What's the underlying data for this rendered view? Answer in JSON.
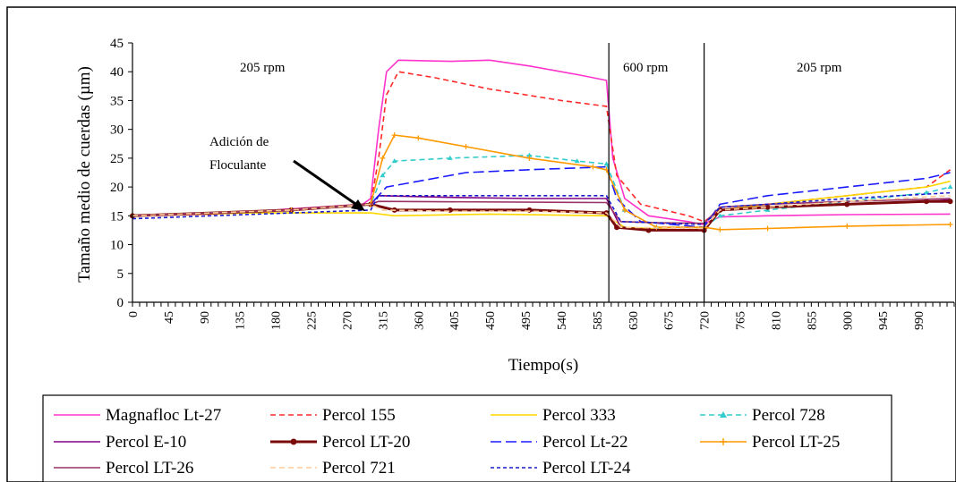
{
  "chart_data": {
    "type": "line",
    "xlabel": "Tiempo(s)",
    "ylabel": "Tamaño medio de cuerdas (µm)",
    "ylim": [
      0,
      45
    ],
    "xlim": [
      0,
      1035
    ],
    "yticks": [
      "0",
      "5",
      "10",
      "15",
      "20",
      "25",
      "30",
      "35",
      "40",
      "45"
    ],
    "xticks": [
      "0",
      "45",
      "90",
      "135",
      "180",
      "225",
      "270",
      "315",
      "360",
      "405",
      "450",
      "495",
      "540",
      "585",
      "630",
      "675",
      "720",
      "765",
      "810",
      "855",
      "900",
      "945",
      "990"
    ],
    "grid": false,
    "legend_position": "bottom",
    "annotations": {
      "zone1": "205 rpm",
      "zone2": "600 rpm",
      "zone3": "205 rpm",
      "arrow_line1": "Adición de",
      "arrow_line2": "Floculante"
    },
    "vlines": [
      600,
      720
    ],
    "series": [
      {
        "name": "Magnafloc Lt-27",
        "color": "#ff33cc",
        "dash": "solid",
        "marker": "none",
        "points": [
          [
            0,
            15
          ],
          [
            100,
            15.3
          ],
          [
            200,
            16.2
          ],
          [
            290,
            17
          ],
          [
            300,
            18
          ],
          [
            310,
            30
          ],
          [
            320,
            40
          ],
          [
            335,
            42
          ],
          [
            400,
            41.8
          ],
          [
            450,
            42
          ],
          [
            500,
            41
          ],
          [
            560,
            39.5
          ],
          [
            597,
            38.5
          ],
          [
            605,
            25
          ],
          [
            620,
            18
          ],
          [
            650,
            15
          ],
          [
            700,
            14
          ],
          [
            718,
            13.5
          ],
          [
            722,
            13.8
          ],
          [
            740,
            14.8
          ],
          [
            800,
            15
          ],
          [
            900,
            15.2
          ],
          [
            1030,
            15.3
          ]
        ]
      },
      {
        "name": "Percol 155",
        "color": "#ff2a2a",
        "dash": "dashed",
        "marker": "none",
        "points": [
          [
            0,
            15
          ],
          [
            100,
            15.3
          ],
          [
            200,
            16
          ],
          [
            300,
            17
          ],
          [
            310,
            25
          ],
          [
            320,
            36
          ],
          [
            335,
            40
          ],
          [
            380,
            39
          ],
          [
            450,
            37
          ],
          [
            540,
            35
          ],
          [
            597,
            34
          ],
          [
            610,
            22
          ],
          [
            640,
            17
          ],
          [
            700,
            15
          ],
          [
            720,
            14
          ],
          [
            740,
            16
          ],
          [
            800,
            17
          ],
          [
            900,
            18.5
          ],
          [
            1000,
            20
          ],
          [
            1030,
            23
          ]
        ]
      },
      {
        "name": "Percol 333",
        "color": "#ffd700",
        "dash": "solid",
        "marker": "none",
        "points": [
          [
            0,
            15
          ],
          [
            150,
            15.5
          ],
          [
            300,
            15.5
          ],
          [
            330,
            15
          ],
          [
            450,
            15.3
          ],
          [
            597,
            15
          ],
          [
            620,
            13
          ],
          [
            700,
            12.5
          ],
          [
            720,
            12.8
          ],
          [
            740,
            16
          ],
          [
            800,
            17
          ],
          [
            900,
            18.5
          ],
          [
            1000,
            20
          ],
          [
            1030,
            21
          ]
        ]
      },
      {
        "name": "Percol 728",
        "color": "#33cccc",
        "dash": "dashed",
        "marker": "triangle",
        "points": [
          [
            0,
            15
          ],
          [
            200,
            16
          ],
          [
            300,
            17
          ],
          [
            315,
            22
          ],
          [
            330,
            24.5
          ],
          [
            400,
            25
          ],
          [
            500,
            25.5
          ],
          [
            560,
            24.5
          ],
          [
            597,
            24
          ],
          [
            620,
            16
          ],
          [
            660,
            13
          ],
          [
            720,
            13
          ],
          [
            740,
            15
          ],
          [
            800,
            16
          ],
          [
            900,
            17.5
          ],
          [
            1000,
            19
          ],
          [
            1030,
            20
          ]
        ]
      },
      {
        "name": "Percol E-10",
        "color": "#800080",
        "dash": "solid",
        "marker": "none",
        "points": [
          [
            0,
            15
          ],
          [
            200,
            16
          ],
          [
            300,
            17
          ],
          [
            310,
            18.5
          ],
          [
            400,
            18.2
          ],
          [
            500,
            18
          ],
          [
            597,
            18
          ],
          [
            615,
            13
          ],
          [
            650,
            12.5
          ],
          [
            720,
            12.5
          ],
          [
            740,
            16
          ],
          [
            800,
            16.5
          ],
          [
            900,
            17
          ],
          [
            1000,
            17.5
          ],
          [
            1030,
            17.8
          ]
        ]
      },
      {
        "name": "Percol LT-20",
        "color": "#7a0a0a",
        "dash": "solid",
        "marker": "circle",
        "points": [
          [
            0,
            15
          ],
          [
            200,
            16
          ],
          [
            300,
            17
          ],
          [
            330,
            16
          ],
          [
            400,
            16
          ],
          [
            500,
            16
          ],
          [
            597,
            15.5
          ],
          [
            610,
            13
          ],
          [
            650,
            12.5
          ],
          [
            720,
            12.5
          ],
          [
            740,
            16
          ],
          [
            800,
            16.5
          ],
          [
            900,
            17
          ],
          [
            1000,
            17.5
          ],
          [
            1030,
            17.5
          ]
        ]
      },
      {
        "name": "Percol Lt-22",
        "color": "#1a1aff",
        "dash": "longdash",
        "marker": "none",
        "points": [
          [
            0,
            15
          ],
          [
            200,
            16
          ],
          [
            300,
            17
          ],
          [
            320,
            20
          ],
          [
            360,
            21
          ],
          [
            420,
            22.5
          ],
          [
            500,
            23
          ],
          [
            597,
            23.5
          ],
          [
            610,
            18
          ],
          [
            640,
            14
          ],
          [
            720,
            13
          ],
          [
            740,
            17
          ],
          [
            800,
            18.5
          ],
          [
            900,
            20
          ],
          [
            1000,
            21.5
          ],
          [
            1030,
            22.5
          ]
        ]
      },
      {
        "name": "Percol LT-25",
        "color": "#ff9900",
        "dash": "solid",
        "marker": "plus",
        "points": [
          [
            0,
            15
          ],
          [
            200,
            16
          ],
          [
            300,
            17
          ],
          [
            315,
            25
          ],
          [
            330,
            29
          ],
          [
            360,
            28.5
          ],
          [
            420,
            27
          ],
          [
            500,
            25
          ],
          [
            580,
            23.5
          ],
          [
            597,
            23
          ],
          [
            620,
            16
          ],
          [
            660,
            13
          ],
          [
            720,
            13
          ],
          [
            740,
            12.6
          ],
          [
            800,
            12.8
          ],
          [
            900,
            13.2
          ],
          [
            1030,
            13.5
          ]
        ]
      },
      {
        "name": "Percol LT-26",
        "color": "#993366",
        "dash": "solid",
        "marker": "none",
        "points": [
          [
            0,
            15
          ],
          [
            200,
            16
          ],
          [
            300,
            17
          ],
          [
            310,
            17.5
          ],
          [
            597,
            17.3
          ],
          [
            615,
            14
          ],
          [
            660,
            13.8
          ],
          [
            720,
            13.7
          ],
          [
            740,
            16.5
          ],
          [
            800,
            17
          ],
          [
            900,
            17.5
          ],
          [
            1030,
            18
          ]
        ]
      },
      {
        "name": "Percol 721",
        "color": "#ffcc99",
        "dash": "dashed",
        "marker": "none",
        "points": [
          [
            0,
            15
          ],
          [
            200,
            16
          ],
          [
            300,
            17
          ],
          [
            315,
            16
          ],
          [
            400,
            15.8
          ],
          [
            500,
            15.8
          ],
          [
            597,
            15.5
          ],
          [
            615,
            13
          ],
          [
            720,
            12.8
          ],
          [
            740,
            16
          ],
          [
            800,
            16.5
          ],
          [
            900,
            17.5
          ],
          [
            1030,
            18.5
          ]
        ]
      },
      {
        "name": "Percol LT-24",
        "color": "#1a1acc",
        "dash": "shortdash",
        "marker": "none",
        "points": [
          [
            0,
            14.5
          ],
          [
            100,
            15
          ],
          [
            200,
            15.5
          ],
          [
            300,
            16
          ],
          [
            310,
            18.5
          ],
          [
            400,
            18.5
          ],
          [
            500,
            18.5
          ],
          [
            597,
            18.5
          ],
          [
            615,
            14
          ],
          [
            720,
            13.5
          ],
          [
            740,
            16.5
          ],
          [
            800,
            17
          ],
          [
            900,
            18
          ],
          [
            1030,
            19
          ]
        ]
      }
    ]
  }
}
